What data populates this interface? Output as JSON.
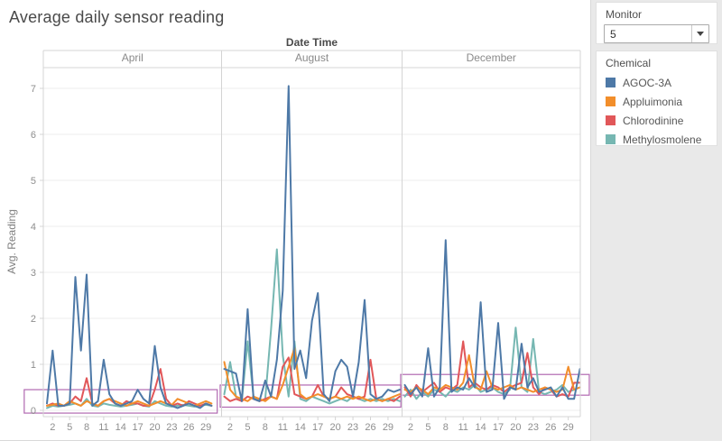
{
  "title": "Average daily sensor reading",
  "sidebar": {
    "monitor": {
      "label": "Monitor",
      "value": "5"
    },
    "legend": {
      "title": "Chemical",
      "items": [
        {
          "label": "AGOC-3A",
          "color": "#4e79a7"
        },
        {
          "label": "Appluimonia",
          "color": "#f28e2b"
        },
        {
          "label": "Chlorodinine",
          "color": "#e15759"
        },
        {
          "label": "Methylosmolene",
          "color": "#76b7b2"
        }
      ]
    }
  },
  "chart_data": {
    "type": "line",
    "title": "Average daily sensor reading",
    "x_axis_title": "Date Time",
    "ylabel": "Avg. Reading",
    "ylim": [
      -0.15,
      7.45
    ],
    "yticks": [
      0,
      1,
      2,
      3,
      4,
      5,
      6,
      7
    ],
    "xtick_days": [
      2,
      5,
      8,
      11,
      14,
      17,
      20,
      23,
      26,
      29
    ],
    "grid": "horizontal",
    "legend_position": "right",
    "annotation_color": "#b168b1",
    "panels": [
      {
        "month": "April",
        "days": 30,
        "series": [
          {
            "name": "AGOC-3A",
            "color": "#4e79a7",
            "values": [
              0.15,
              1.3,
              0.1,
              0.1,
              0.15,
              2.9,
              1.3,
              2.95,
              0.1,
              0.2,
              1.1,
              0.35,
              0.15,
              0.1,
              0.15,
              0.2,
              0.45,
              0.25,
              0.15,
              1.4,
              0.5,
              0.15,
              0.1,
              0.05,
              0.1,
              0.15,
              0.1,
              0.05,
              0.15,
              0.1
            ]
          },
          {
            "name": "Appluimonia",
            "color": "#f28e2b",
            "values": [
              0.1,
              0.12,
              0.15,
              0.1,
              0.2,
              0.15,
              0.1,
              0.2,
              0.15,
              0.1,
              0.2,
              0.25,
              0.2,
              0.15,
              0.1,
              0.15,
              0.2,
              0.15,
              0.1,
              0.15,
              0.2,
              0.15,
              0.12,
              0.25,
              0.2,
              0.15,
              0.1,
              0.15,
              0.2,
              0.15
            ]
          },
          {
            "name": "Chlorodinine",
            "color": "#e15759",
            "values": [
              0.1,
              0.15,
              0.1,
              0.1,
              0.15,
              0.3,
              0.2,
              0.7,
              0.15,
              0.1,
              0.2,
              0.25,
              0.15,
              0.1,
              0.2,
              0.15,
              0.15,
              0.1,
              0.1,
              0.45,
              0.9,
              0.25,
              0.1,
              0.15,
              0.1,
              0.2,
              0.15,
              0.1,
              0.15,
              0.1
            ]
          },
          {
            "name": "Methylosmolene",
            "color": "#76b7b2",
            "values": [
              0.05,
              0.1,
              0.08,
              0.1,
              0.12,
              0.15,
              0.1,
              0.25,
              0.1,
              0.08,
              0.15,
              0.12,
              0.1,
              0.08,
              0.1,
              0.12,
              0.15,
              0.1,
              0.08,
              0.2,
              0.15,
              0.1,
              0.08,
              0.1,
              0.12,
              0.1,
              0.08,
              0.1,
              0.12,
              0.1
            ]
          }
        ]
      },
      {
        "month": "August",
        "days": 31,
        "series": [
          {
            "name": "AGOC-3A",
            "color": "#4e79a7",
            "values": [
              0.9,
              0.85,
              0.8,
              0.2,
              2.2,
              0.25,
              0.2,
              0.65,
              0.3,
              1.1,
              2.6,
              7.05,
              0.9,
              1.3,
              0.7,
              1.95,
              2.55,
              0.35,
              0.2,
              0.85,
              1.1,
              0.95,
              0.3,
              1.05,
              2.4,
              0.35,
              0.25,
              0.3,
              0.45,
              0.4,
              0.45
            ]
          },
          {
            "name": "Appluimonia",
            "color": "#f28e2b",
            "values": [
              1.05,
              0.45,
              0.3,
              0.25,
              0.2,
              0.3,
              0.25,
              0.2,
              0.3,
              0.25,
              0.55,
              0.95,
              1.35,
              0.35,
              0.25,
              0.3,
              0.35,
              0.3,
              0.25,
              0.3,
              0.25,
              0.3,
              0.25,
              0.3,
              0.25,
              0.2,
              0.25,
              0.2,
              0.25,
              0.3,
              0.35
            ]
          },
          {
            "name": "Chlorodinine",
            "color": "#e15759",
            "values": [
              0.3,
              0.2,
              0.25,
              0.2,
              0.3,
              0.25,
              0.2,
              0.25,
              0.3,
              0.25,
              0.95,
              1.15,
              0.35,
              0.3,
              0.25,
              0.3,
              0.55,
              0.3,
              0.25,
              0.3,
              0.5,
              0.35,
              0.3,
              0.25,
              0.3,
              1.1,
              0.25,
              0.2,
              0.25,
              0.2,
              0.3
            ]
          },
          {
            "name": "Methylosmolene",
            "color": "#76b7b2",
            "values": [
              0.35,
              1.05,
              0.3,
              0.2,
              1.5,
              0.3,
              0.2,
              0.25,
              1.75,
              3.5,
              1.2,
              0.3,
              1.5,
              0.25,
              0.2,
              0.3,
              0.25,
              0.2,
              0.15,
              0.2,
              0.25,
              0.2,
              0.3,
              0.25,
              0.2,
              0.25,
              0.2,
              0.25,
              0.2,
              0.25,
              0.2
            ]
          }
        ]
      },
      {
        "month": "December",
        "days": 31,
        "series": [
          {
            "name": "AGOC-3A",
            "color": "#4e79a7",
            "values": [
              0.55,
              0.35,
              0.5,
              0.3,
              1.35,
              0.3,
              0.5,
              3.7,
              0.4,
              0.5,
              0.45,
              0.7,
              0.5,
              2.35,
              0.4,
              0.45,
              1.9,
              0.25,
              0.5,
              0.45,
              1.45,
              0.5,
              0.7,
              0.4,
              0.45,
              0.5,
              0.3,
              0.5,
              0.25,
              0.25,
              0.9
            ]
          },
          {
            "name": "Appluimonia",
            "color": "#f28e2b",
            "values": [
              0.45,
              0.4,
              0.5,
              0.45,
              0.35,
              0.5,
              0.45,
              0.55,
              0.5,
              0.45,
              0.6,
              1.2,
              0.5,
              0.45,
              0.85,
              0.5,
              0.45,
              0.5,
              0.55,
              0.45,
              0.5,
              0.45,
              0.4,
              0.45,
              0.5,
              0.45,
              0.4,
              0.45,
              0.95,
              0.45,
              0.5
            ]
          },
          {
            "name": "Chlorodinine",
            "color": "#e15759",
            "values": [
              0.5,
              0.3,
              0.55,
              0.4,
              0.5,
              0.6,
              0.4,
              0.5,
              0.45,
              0.55,
              1.5,
              0.5,
              0.6,
              0.5,
              0.45,
              0.55,
              0.5,
              0.4,
              0.5,
              0.55,
              0.6,
              1.25,
              0.5,
              0.35,
              0.5,
              0.45,
              0.3,
              0.35,
              0.3,
              0.6,
              0.6
            ]
          },
          {
            "name": "Methylosmolene",
            "color": "#76b7b2",
            "values": [
              0.3,
              0.45,
              0.25,
              0.4,
              0.3,
              0.45,
              0.4,
              0.3,
              0.45,
              0.4,
              0.5,
              0.45,
              0.55,
              0.4,
              0.45,
              0.5,
              0.4,
              0.35,
              0.45,
              1.8,
              0.5,
              0.4,
              1.55,
              0.4,
              0.35,
              0.4,
              0.45,
              0.55,
              0.4,
              0.45,
              0.5
            ]
          }
        ]
      }
    ],
    "annotations": [
      {
        "panel": "April",
        "day_start": -3.0,
        "day_end": 31.0,
        "value_low": -0.06,
        "value_high": 0.45
      },
      {
        "panel": "August",
        "day_start": 0.3,
        "day_end": 31.2,
        "value_low": 0.07,
        "value_high": 0.55
      },
      {
        "panel": "December",
        "day_start": 0.3,
        "day_end": 32.6,
        "value_low": 0.33,
        "value_high": 0.78
      }
    ]
  }
}
